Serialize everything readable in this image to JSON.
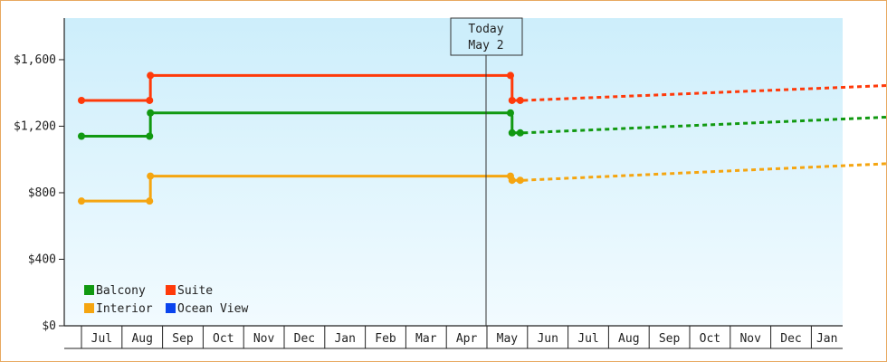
{
  "chart_data": {
    "type": "line",
    "ylim": [
      0,
      1850
    ],
    "y_ticks": [
      {
        "value": 0,
        "label": "$0"
      },
      {
        "value": 400,
        "label": "$400"
      },
      {
        "value": 800,
        "label": "$800"
      },
      {
        "value": 1200,
        "label": "$1,200"
      },
      {
        "value": 1600,
        "label": "$1,600"
      }
    ],
    "month_labels": [
      "Jul",
      "Aug",
      "Sep",
      "Oct",
      "Nov",
      "Dec",
      "Jan",
      "Feb",
      "Mar",
      "Apr",
      "May",
      "Jun",
      "Jul",
      "Aug",
      "Sep",
      "Oct",
      "Nov",
      "Dec",
      "Jan"
    ],
    "today": {
      "line1": "Today",
      "line2": "May 2"
    },
    "legend": {
      "placement": "bottom-left"
    },
    "series": [
      {
        "name": "Balcony",
        "color": "#119911",
        "history": [
          [
            0.0,
            1140
          ],
          [
            1.68,
            1140
          ],
          [
            1.7,
            1280
          ],
          [
            10.58,
            1280
          ],
          [
            10.62,
            1160
          ],
          [
            10.82,
            1160
          ]
        ],
        "forecast": [
          [
            10.9,
            1160
          ],
          [
            19.9,
            1255
          ]
        ]
      },
      {
        "name": "Suite",
        "color": "#ff3a0a",
        "history": [
          [
            0.0,
            1355
          ],
          [
            1.68,
            1355
          ],
          [
            1.7,
            1505
          ],
          [
            10.58,
            1505
          ],
          [
            10.62,
            1355
          ],
          [
            10.82,
            1355
          ]
        ],
        "forecast": [
          [
            10.9,
            1355
          ],
          [
            19.9,
            1445
          ]
        ]
      },
      {
        "name": "Interior",
        "color": "#f5a510",
        "history": [
          [
            0.0,
            750
          ],
          [
            1.68,
            750
          ],
          [
            1.7,
            900
          ],
          [
            10.58,
            900
          ],
          [
            10.62,
            875
          ],
          [
            10.82,
            875
          ]
        ],
        "forecast": [
          [
            10.9,
            875
          ],
          [
            19.9,
            975
          ]
        ]
      },
      {
        "name": "Ocean View",
        "color": "#0a44ee",
        "history": [],
        "forecast": []
      }
    ]
  }
}
